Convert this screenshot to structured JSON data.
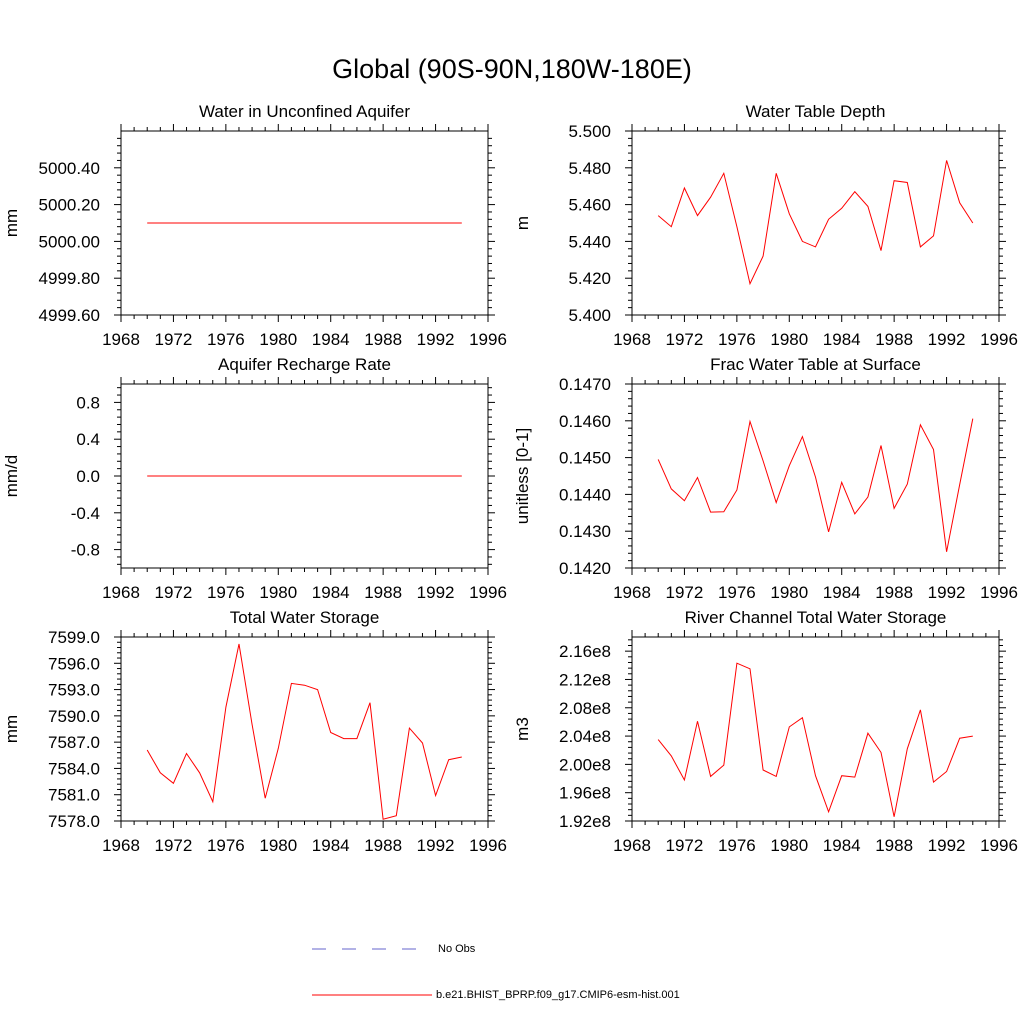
{
  "title": "Global (90S-90N,180W-180E)",
  "legend": [
    {
      "label": "No Obs",
      "color": "#6666cc",
      "style": "dashed"
    },
    {
      "label": "b.e21.BHIST_BPRP.f09_g17.CMIP6-esm-hist.001",
      "color": "#ff0000",
      "style": "solid"
    }
  ],
  "chart_data": [
    {
      "type": "line",
      "title": "Water in Unconfined Aquifer",
      "ylabel": "mm",
      "ylim": [
        4999.6,
        5000.6
      ],
      "yticks": [
        4999.6,
        4999.8,
        5000.0,
        5000.2,
        5000.4
      ],
      "ytick_labels": [
        "4999.60",
        "4999.80",
        "5000.00",
        "5000.20",
        "5000.40"
      ],
      "xlim": [
        1968,
        1996
      ],
      "xticks": [
        1968,
        1972,
        1976,
        1980,
        1984,
        1988,
        1992,
        1996
      ],
      "series": [
        {
          "color": "#ff0000",
          "x": [
            1970,
            1971,
            1972,
            1973,
            1974,
            1975,
            1976,
            1977,
            1978,
            1979,
            1980,
            1981,
            1982,
            1983,
            1984,
            1985,
            1986,
            1987,
            1988,
            1989,
            1990,
            1991,
            1992,
            1993,
            1994
          ],
          "values": [
            5000.1,
            5000.1,
            5000.1,
            5000.1,
            5000.1,
            5000.1,
            5000.1,
            5000.1,
            5000.1,
            5000.1,
            5000.1,
            5000.1,
            5000.1,
            5000.1,
            5000.1,
            5000.1,
            5000.1,
            5000.1,
            5000.1,
            5000.1,
            5000.1,
            5000.1,
            5000.1,
            5000.1,
            5000.1
          ]
        }
      ]
    },
    {
      "type": "line",
      "title": "Water Table Depth",
      "ylabel": "m",
      "ylim": [
        5.4,
        5.5
      ],
      "yticks": [
        5.4,
        5.42,
        5.44,
        5.46,
        5.48,
        5.5
      ],
      "ytick_labels": [
        "5.400",
        "5.420",
        "5.440",
        "5.460",
        "5.480",
        "5.500"
      ],
      "xlim": [
        1968,
        1996
      ],
      "xticks": [
        1968,
        1972,
        1976,
        1980,
        1984,
        1988,
        1992,
        1996
      ],
      "series": [
        {
          "color": "#ff0000",
          "x": [
            1970,
            1971,
            1972,
            1973,
            1974,
            1975,
            1976,
            1977,
            1978,
            1979,
            1980,
            1981,
            1982,
            1983,
            1984,
            1985,
            1986,
            1987,
            1988,
            1989,
            1990,
            1991,
            1992,
            1993,
            1994
          ],
          "values": [
            5.454,
            5.448,
            5.469,
            5.454,
            5.464,
            5.477,
            5.448,
            5.417,
            5.432,
            5.477,
            5.455,
            5.44,
            5.437,
            5.452,
            5.458,
            5.467,
            5.459,
            5.435,
            5.473,
            5.472,
            5.437,
            5.443,
            5.484,
            5.461,
            5.45
          ]
        }
      ]
    },
    {
      "type": "line",
      "title": "Aquifer Recharge Rate",
      "ylabel": "mm/d",
      "ylim": [
        -1.0,
        1.0
      ],
      "yticks": [
        -0.8,
        -0.4,
        0.0,
        0.4,
        0.8
      ],
      "ytick_labels": [
        "-0.8",
        "-0.4",
        "0.0",
        "0.4",
        "0.8"
      ],
      "xlim": [
        1968,
        1996
      ],
      "xticks": [
        1968,
        1972,
        1976,
        1980,
        1984,
        1988,
        1992,
        1996
      ],
      "series": [
        {
          "color": "#ff0000",
          "x": [
            1970,
            1971,
            1972,
            1973,
            1974,
            1975,
            1976,
            1977,
            1978,
            1979,
            1980,
            1981,
            1982,
            1983,
            1984,
            1985,
            1986,
            1987,
            1988,
            1989,
            1990,
            1991,
            1992,
            1993,
            1994
          ],
          "values": [
            0,
            0,
            0,
            0,
            0,
            0,
            0,
            0,
            0,
            0,
            0,
            0,
            0,
            0,
            0,
            0,
            0,
            0,
            0,
            0,
            0,
            0,
            0,
            0,
            0
          ]
        }
      ]
    },
    {
      "type": "line",
      "title": "Frac Water Table at Surface",
      "ylabel": "unitless [0-1]",
      "ylim": [
        0.142,
        0.147
      ],
      "yticks": [
        0.142,
        0.143,
        0.144,
        0.145,
        0.146,
        0.147
      ],
      "ytick_labels": [
        "0.1420",
        "0.1430",
        "0.1440",
        "0.1450",
        "0.1460",
        "0.1470"
      ],
      "xlim": [
        1968,
        1996
      ],
      "xticks": [
        1968,
        1972,
        1976,
        1980,
        1984,
        1988,
        1992,
        1996
      ],
      "series": [
        {
          "color": "#ff0000",
          "x": [
            1970,
            1971,
            1972,
            1973,
            1974,
            1975,
            1976,
            1977,
            1978,
            1979,
            1980,
            1981,
            1982,
            1983,
            1984,
            1985,
            1986,
            1987,
            1988,
            1989,
            1990,
            1991,
            1992,
            1993,
            1994
          ],
          "values": [
            0.14495,
            0.14415,
            0.14383,
            0.14446,
            0.14352,
            0.14353,
            0.14412,
            0.14598,
            0.14491,
            0.14378,
            0.14478,
            0.14557,
            0.14447,
            0.14298,
            0.14433,
            0.14347,
            0.14393,
            0.14533,
            0.14362,
            0.14428,
            0.14589,
            0.14522,
            0.14244,
            0.14427,
            0.14606
          ]
        }
      ]
    },
    {
      "type": "line",
      "title": "Total Water Storage",
      "ylabel": "mm",
      "ylim": [
        7578.0,
        7599.0
      ],
      "yticks": [
        7578.0,
        7581.0,
        7584.0,
        7587.0,
        7590.0,
        7593.0,
        7596.0,
        7599.0
      ],
      "ytick_labels": [
        "7578.0",
        "7581.0",
        "7584.0",
        "7587.0",
        "7590.0",
        "7593.0",
        "7596.0",
        "7599.0"
      ],
      "xlim": [
        1968,
        1996
      ],
      "xticks": [
        1968,
        1972,
        1976,
        1980,
        1984,
        1988,
        1992,
        1996
      ],
      "series": [
        {
          "color": "#ff0000",
          "x": [
            1970,
            1971,
            1972,
            1973,
            1974,
            1975,
            1976,
            1977,
            1978,
            1979,
            1980,
            1981,
            1982,
            1983,
            1984,
            1985,
            1986,
            1987,
            1988,
            1989,
            1990,
            1991,
            1992,
            1993,
            1994
          ],
          "values": [
            7586.1,
            7583.5,
            7582.3,
            7585.7,
            7583.5,
            7580.2,
            7591.0,
            7598.2,
            7589.0,
            7580.6,
            7586.3,
            7593.7,
            7593.5,
            7593.0,
            7588.1,
            7587.4,
            7587.4,
            7591.5,
            7578.2,
            7578.6,
            7588.6,
            7586.9,
            7580.9,
            7585.0,
            7585.3
          ]
        }
      ]
    },
    {
      "type": "line",
      "title": "River Channel Total Water Storage",
      "ylabel": "m3",
      "ylim": [
        192000000.0,
        218000000.0
      ],
      "yticks": [
        192000000.0,
        196000000.0,
        200000000.0,
        204000000.0,
        208000000.0,
        212000000.0,
        216000000.0
      ],
      "ytick_labels": [
        "1.92e8",
        "1.96e8",
        "2.00e8",
        "2.04e8",
        "2.08e8",
        "2.12e8",
        "2.16e8"
      ],
      "xlim": [
        1968,
        1996
      ],
      "xticks": [
        1968,
        1972,
        1976,
        1980,
        1984,
        1988,
        1992,
        1996
      ],
      "series": [
        {
          "color": "#ff0000",
          "x": [
            1970,
            1971,
            1972,
            1973,
            1974,
            1975,
            1976,
            1977,
            1978,
            1979,
            1980,
            1981,
            1982,
            1983,
            1984,
            1985,
            1986,
            1987,
            1988,
            1989,
            1990,
            1991,
            1992,
            1993,
            1994
          ],
          "values": [
            203500000.0,
            201200000.0,
            197800000.0,
            206100000.0,
            198300000.0,
            199900000.0,
            214300000.0,
            213500000.0,
            199200000.0,
            198300000.0,
            205300000.0,
            206600000.0,
            198400000.0,
            193300000.0,
            198400000.0,
            198200000.0,
            204400000.0,
            201700000.0,
            192600000.0,
            202200000.0,
            207700000.0,
            197500000.0,
            199000000.0,
            203700000.0,
            204000000.0
          ]
        }
      ]
    }
  ]
}
